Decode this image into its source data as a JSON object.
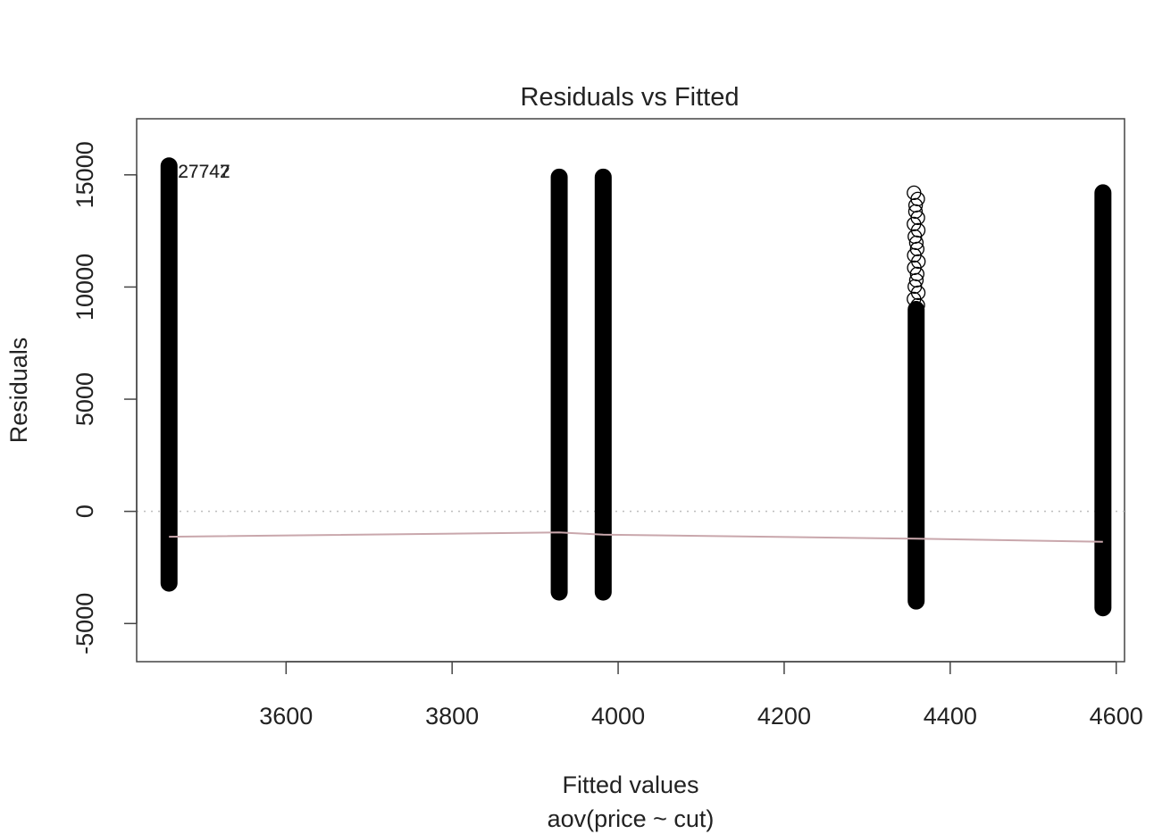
{
  "chart_data": {
    "type": "scatter",
    "title": "Residuals vs Fitted",
    "xlabel": "Fitted values",
    "subtitle": "aov(price ~ cut)",
    "ylabel": "Residuals",
    "xlim": [
      3420,
      4610
    ],
    "ylim": [
      -6700,
      17500
    ],
    "x_ticks": [
      3600,
      3800,
      4000,
      4200,
      4400,
      4600
    ],
    "y_ticks": [
      -5000,
      0,
      5000,
      10000,
      15000
    ],
    "reference_line_y": 0,
    "groups": [
      {
        "fitted": 3459,
        "residual_min": -3200,
        "residual_max": 15400,
        "marker": "filled"
      },
      {
        "fitted": 3929,
        "residual_min": -3600,
        "residual_max": 14900,
        "marker": "filled"
      },
      {
        "fitted": 3982,
        "residual_min": -3600,
        "residual_max": 14900,
        "marker": "filled"
      },
      {
        "fitted": 4359,
        "residual_min": -4000,
        "residual_max": 14200,
        "marker": "open"
      },
      {
        "fitted": 4584,
        "residual_min": -4300,
        "residual_max": 14200,
        "marker": "filled"
      }
    ],
    "smooth_line": [
      {
        "x": 3459,
        "y": -1130
      },
      {
        "x": 3929,
        "y": -940
      },
      {
        "x": 3982,
        "y": -1040
      },
      {
        "x": 4359,
        "y": -1220
      },
      {
        "x": 4584,
        "y": -1360
      }
    ],
    "point_labels": [
      {
        "text": "27742",
        "x": 3459,
        "y": 15200
      },
      {
        "text": "27747",
        "x": 3459,
        "y": 15200
      }
    ],
    "colors": {
      "points": "#000000",
      "smooth": "#c9a7ac",
      "reference": "#bdbdbd",
      "axis": "#444444"
    }
  }
}
